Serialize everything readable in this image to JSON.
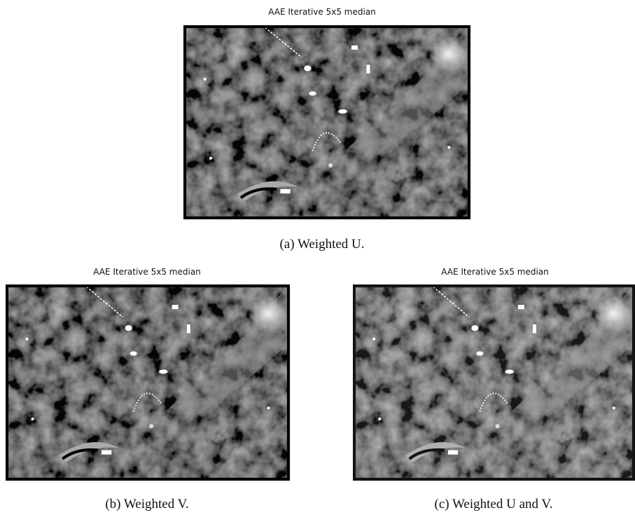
{
  "figure": {
    "panels": [
      {
        "title": "AAE Iterative 5x5 median",
        "caption": "(a) Weighted U."
      },
      {
        "title": "AAE Iterative 5x5 median",
        "caption": "(b) Weighted V."
      },
      {
        "title": "AAE Iterative 5x5 median",
        "caption": "(c) Weighted U and V."
      }
    ]
  }
}
